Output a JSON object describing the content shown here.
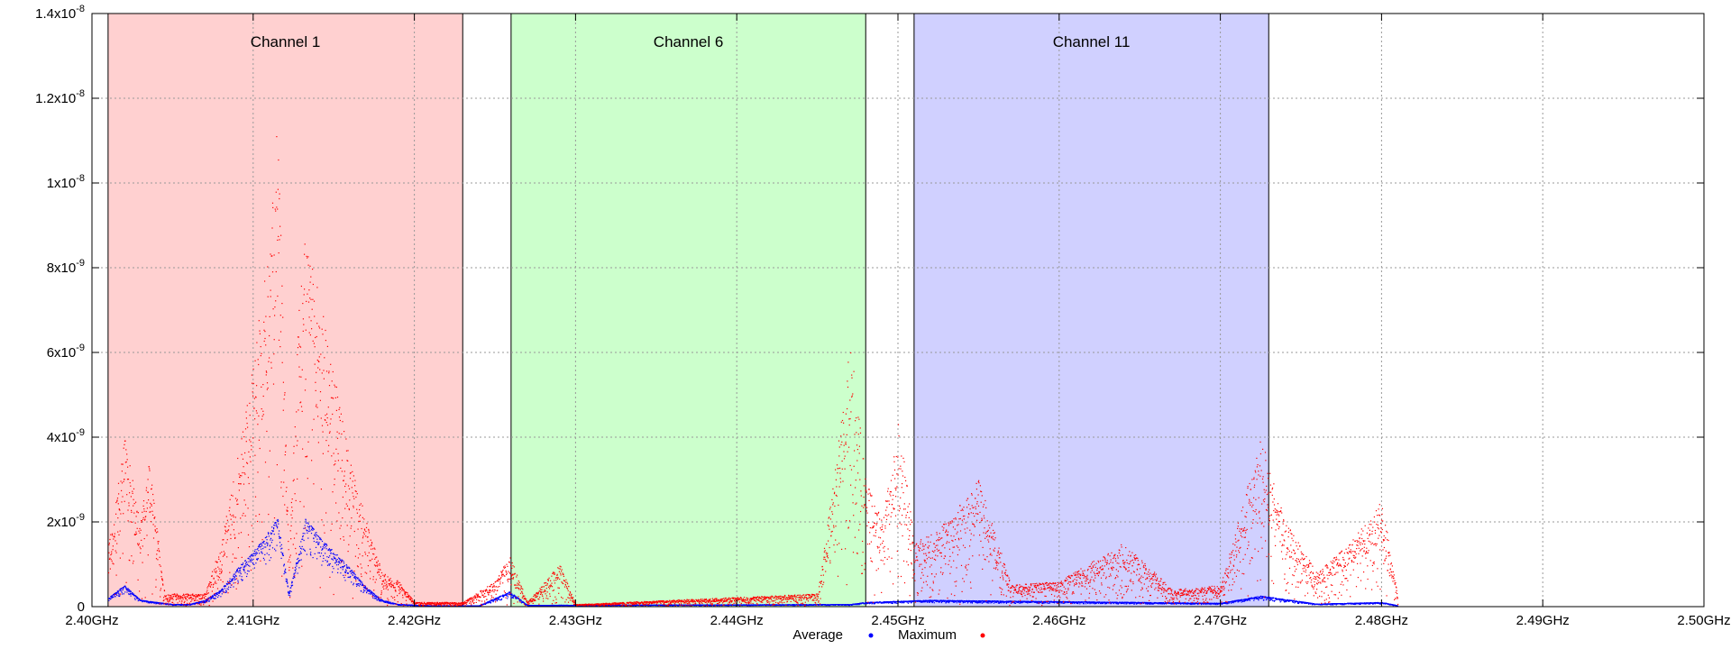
{
  "chart_data": {
    "type": "scatter",
    "xlim": [
      2.4,
      2.5
    ],
    "ylim": [
      0,
      1.4e-08
    ],
    "grid": true,
    "legend_placement": "bottom-center",
    "x_ticks": [
      {
        "value": 2.4,
        "label": "2.40GHz"
      },
      {
        "value": 2.41,
        "label": "2.41GHz"
      },
      {
        "value": 2.42,
        "label": "2.42GHz"
      },
      {
        "value": 2.43,
        "label": "2.43GHz"
      },
      {
        "value": 2.44,
        "label": "2.44GHz"
      },
      {
        "value": 2.45,
        "label": "2.45GHz"
      },
      {
        "value": 2.46,
        "label": "2.46GHz"
      },
      {
        "value": 2.47,
        "label": "2.47GHz"
      },
      {
        "value": 2.48,
        "label": "2.48GHz"
      },
      {
        "value": 2.49,
        "label": "2.49GHz"
      },
      {
        "value": 2.5,
        "label": "2.50GHz"
      }
    ],
    "y_ticks": [
      {
        "value": 0,
        "mant": "0",
        "exp": ""
      },
      {
        "value": 2e-09,
        "mant": "2x10",
        "exp": "-9"
      },
      {
        "value": 4e-09,
        "mant": "4x10",
        "exp": "-9"
      },
      {
        "value": 6e-09,
        "mant": "6x10",
        "exp": "-9"
      },
      {
        "value": 8e-09,
        "mant": "8x10",
        "exp": "-9"
      },
      {
        "value": 1e-08,
        "mant": "1x10",
        "exp": "-8"
      },
      {
        "value": 1.2e-08,
        "mant": "1.2x10",
        "exp": "-8"
      },
      {
        "value": 1.4e-08,
        "mant": "1.4x10",
        "exp": "-8"
      }
    ],
    "bands": [
      {
        "label": "Channel 1",
        "x0": 2.401,
        "x1": 2.423,
        "color": "#ffd0d0"
      },
      {
        "label": "Channel 6",
        "x0": 2.426,
        "x1": 2.448,
        "color": "#ccffcc"
      },
      {
        "label": "Channel 11",
        "x0": 2.451,
        "x1": 2.473,
        "color": "#d0d0ff"
      }
    ],
    "series": [
      {
        "name": "Average",
        "color": "#0000ff",
        "envelope": [
          [
            2.401,
            2e-10
          ],
          [
            2.402,
            5e-10
          ],
          [
            2.403,
            1.5e-10
          ],
          [
            2.405,
            5e-11
          ],
          [
            2.406,
            5e-11
          ],
          [
            2.407,
            1.5e-10
          ],
          [
            2.408,
            4e-10
          ],
          [
            2.409,
            9e-10
          ],
          [
            2.41,
            1.3e-09
          ],
          [
            2.411,
            1.8e-09
          ],
          [
            2.4115,
            2.1e-09
          ],
          [
            2.4122,
            3e-10
          ],
          [
            2.4128,
            1.3e-09
          ],
          [
            2.4132,
            2.1e-09
          ],
          [
            2.414,
            1.7e-09
          ],
          [
            2.415,
            1.3e-09
          ],
          [
            2.416,
            9e-10
          ],
          [
            2.417,
            4.5e-10
          ],
          [
            2.418,
            1.5e-10
          ],
          [
            2.419,
            5e-11
          ],
          [
            2.421,
            2e-11
          ],
          [
            2.424,
            2e-11
          ],
          [
            2.4259,
            3.5e-10
          ],
          [
            2.427,
            3e-11
          ],
          [
            2.447,
            5e-11
          ],
          [
            2.448,
            1e-10
          ],
          [
            2.452,
            1.5e-10
          ],
          [
            2.47,
            8e-11
          ],
          [
            2.4725,
            2.5e-10
          ],
          [
            2.476,
            6e-11
          ],
          [
            2.48,
            1e-10
          ],
          [
            2.481,
            2e-11
          ]
        ]
      },
      {
        "name": "Maximum",
        "color": "#ff0000",
        "envelope": [
          [
            2.401,
            1.5e-09
          ],
          [
            2.402,
            4e-09
          ],
          [
            2.403,
            2e-09
          ],
          [
            2.4035,
            3.5e-09
          ],
          [
            2.4045,
            3e-10
          ],
          [
            2.407,
            3e-10
          ],
          [
            2.408,
            1.5e-09
          ],
          [
            2.409,
            3.5e-09
          ],
          [
            2.41,
            6e-09
          ],
          [
            2.411,
            8.5e-09
          ],
          [
            2.4115,
            1.18e-08
          ],
          [
            2.4122,
            1e-09
          ],
          [
            2.4128,
            7e-09
          ],
          [
            2.4132,
            8.8e-09
          ],
          [
            2.414,
            7.5e-09
          ],
          [
            2.415,
            5.5e-09
          ],
          [
            2.416,
            3.5e-09
          ],
          [
            2.417,
            2e-09
          ],
          [
            2.418,
            8e-10
          ],
          [
            2.419,
            6e-10
          ],
          [
            2.42,
            1e-10
          ],
          [
            2.423,
            1e-10
          ],
          [
            2.425,
            6e-10
          ],
          [
            2.4259,
            1.2e-09
          ],
          [
            2.427,
            1e-10
          ],
          [
            2.429,
            1e-09
          ],
          [
            2.43,
            5e-11
          ],
          [
            2.445,
            3e-10
          ],
          [
            2.446,
            3e-09
          ],
          [
            2.447,
            6.5e-09
          ],
          [
            2.448,
            3e-09
          ],
          [
            2.449,
            2e-09
          ],
          [
            2.45,
            4.5e-09
          ],
          [
            2.451,
            1.5e-09
          ],
          [
            2.453,
            2e-09
          ],
          [
            2.455,
            3e-09
          ],
          [
            2.457,
            5e-10
          ],
          [
            2.46,
            6e-10
          ],
          [
            2.464,
            1.5e-09
          ],
          [
            2.467,
            4e-10
          ],
          [
            2.47,
            5e-10
          ],
          [
            2.4725,
            4e-09
          ],
          [
            2.474,
            2e-09
          ],
          [
            2.476,
            8e-10
          ],
          [
            2.478,
            1.5e-09
          ],
          [
            2.48,
            2.5e-09
          ],
          [
            2.481,
            2e-10
          ]
        ]
      }
    ]
  },
  "legend": {
    "average_label": "Average",
    "maximum_label": "Maximum"
  },
  "colors": {
    "average": "#0000ff",
    "maximum": "#ff0000",
    "grid": "#999999",
    "axis": "#000000"
  }
}
